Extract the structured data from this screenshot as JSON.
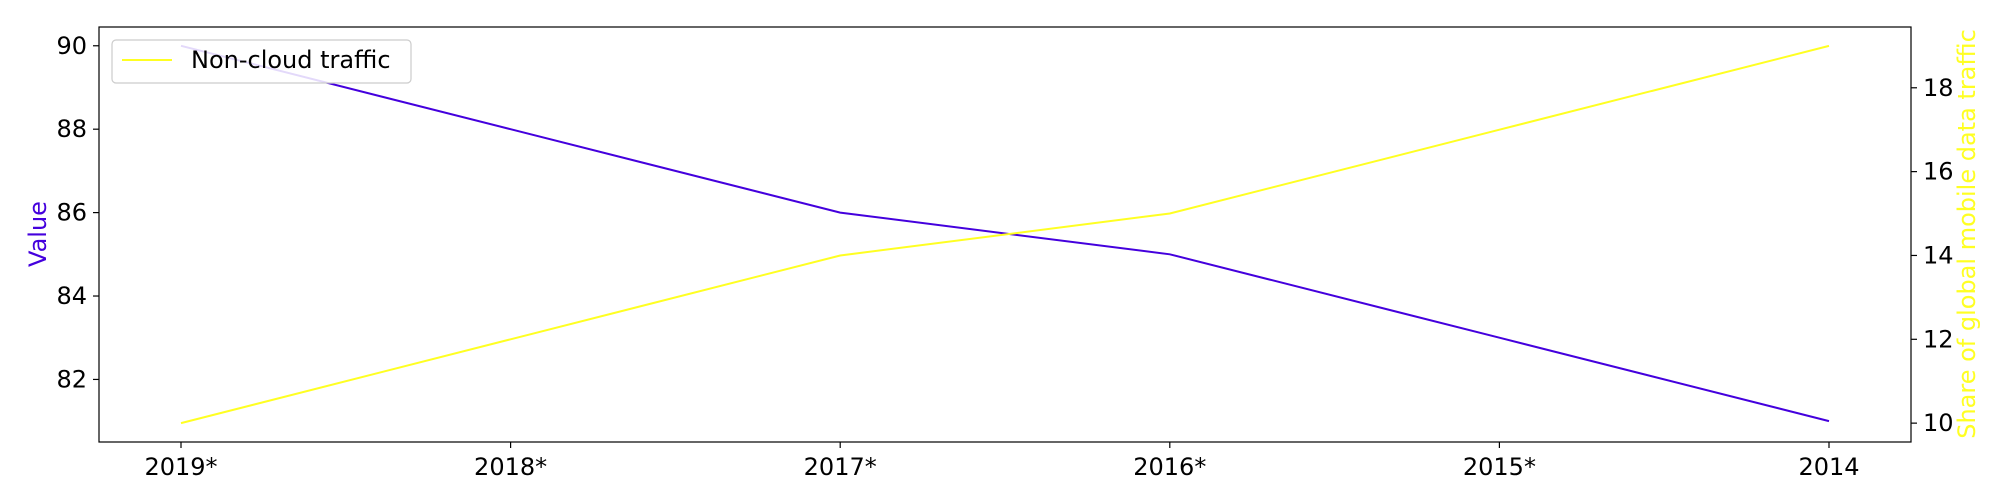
{
  "chart_data": {
    "type": "line",
    "categories": [
      "2019*",
      "2018*",
      "2017*",
      "2016*",
      "2015*",
      "2014"
    ],
    "ylabel_left": "Value",
    "ylabel_right": "Share of global mobile data traffic",
    "ylim_left": [
      80.5,
      90.45
    ],
    "ylim_right": [
      9.55,
      19.45
    ],
    "yticks_left": [
      "82",
      "84",
      "86",
      "88",
      "90"
    ],
    "yticks_right": [
      "10",
      "12",
      "14",
      "16",
      "18"
    ],
    "legend_position": "top-left",
    "grid": false,
    "series": [
      {
        "key": "cloud",
        "axis": "left",
        "color": "#4400dd",
        "values": [
          90,
          88,
          86,
          85,
          83,
          81
        ]
      },
      {
        "key": "noncloud",
        "name": "Non-cloud traffic",
        "axis": "right",
        "color": "#ffff22",
        "values": [
          10,
          12,
          14,
          15,
          17,
          19
        ]
      }
    ]
  }
}
